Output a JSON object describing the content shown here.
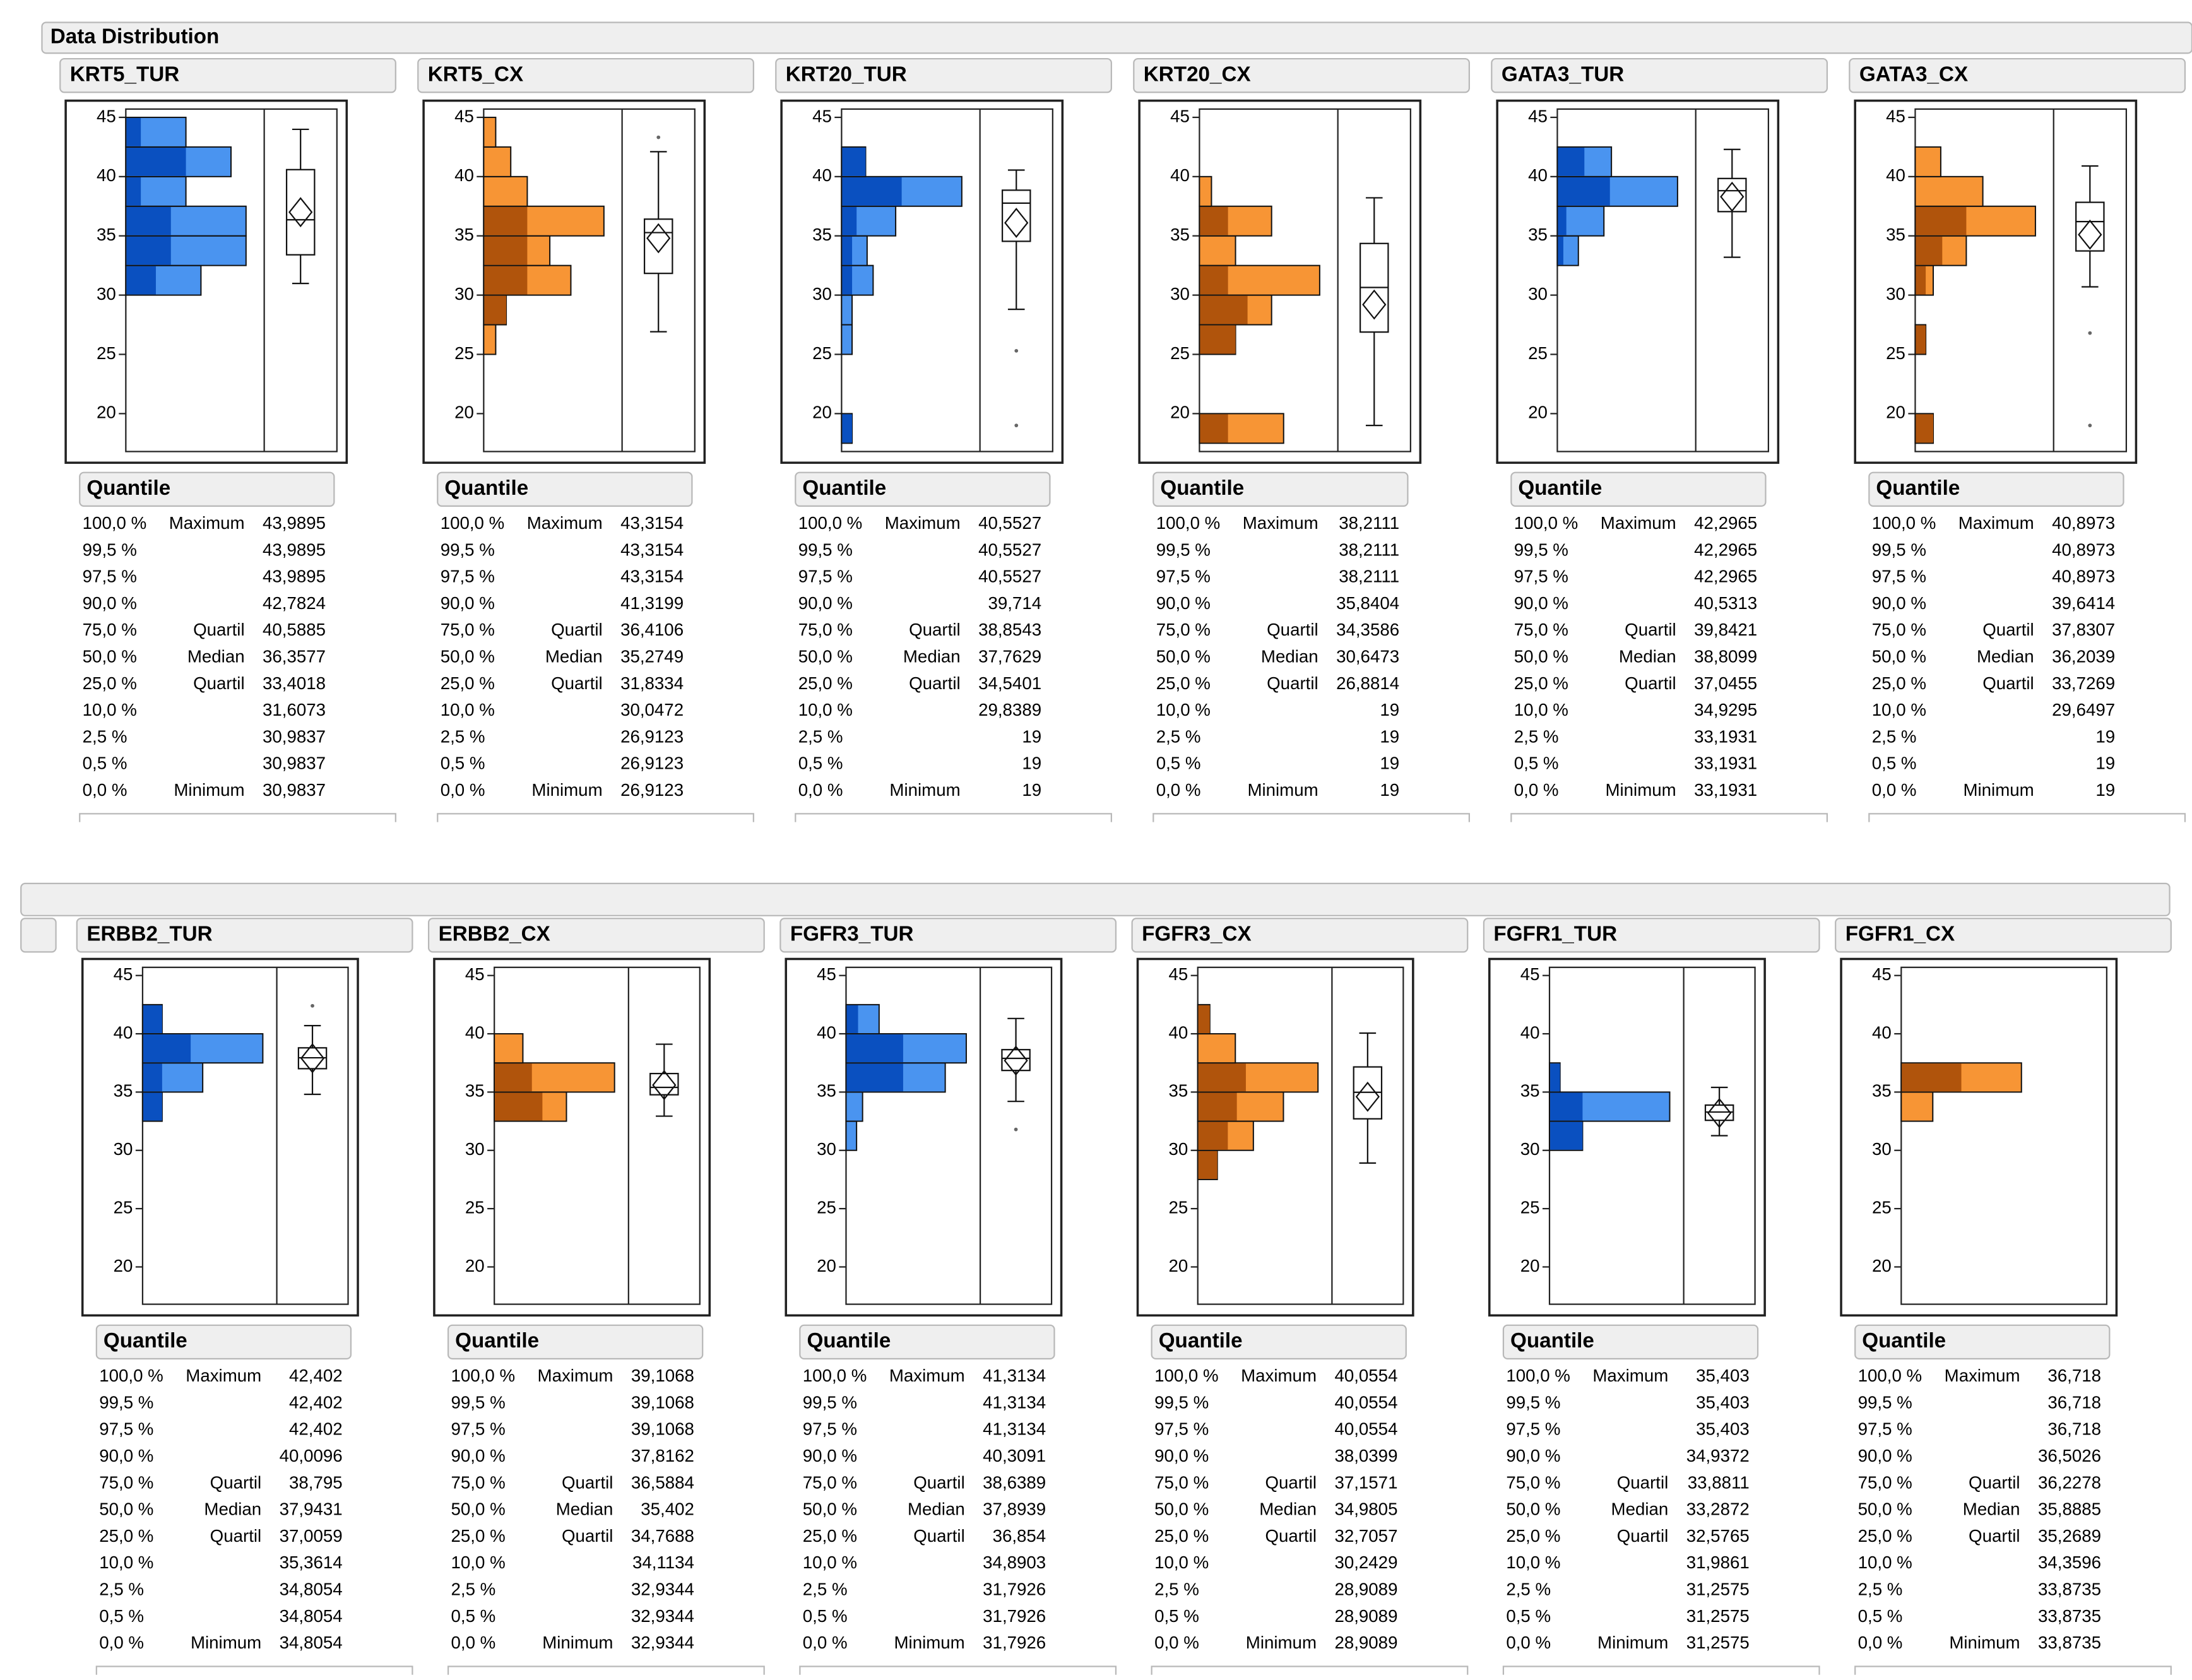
{
  "title": "Data Distribution",
  "quantile_heading": "Quantile",
  "quantile_percents": [
    "100,0 %",
    "99,5 %",
    "97,5 %",
    "90,0 %",
    "75,0 %",
    "50,0 %",
    "25,0 %",
    "10,0 %",
    "2,5 %",
    "0,5 %",
    "0,0 %"
  ],
  "quantile_names": [
    "Maximum",
    null,
    null,
    null,
    "Quartil",
    "Median",
    "Quartil",
    null,
    null,
    null,
    "Minimum"
  ],
  "axis": {
    "ylim": [
      16.8,
      45.7
    ],
    "yticks": [
      20,
      25,
      30,
      35,
      40,
      45
    ]
  },
  "panels": [
    {
      "title": "KRT5_TUR",
      "colors": [
        "#4a94f0",
        "#0a50c0"
      ],
      "hist": {
        "bins": [
          30,
          32.5,
          35,
          37.5,
          40,
          42.5,
          45
        ],
        "counts": [
          5,
          8,
          8,
          4,
          7,
          4
        ],
        "selected": [
          2,
          3,
          3,
          1,
          4,
          1
        ]
      },
      "box": {
        "q1": 33.4018,
        "median": 36.3577,
        "q3": 40.5885,
        "whiskers": [
          30.9837,
          43.9895
        ],
        "mean": 37,
        "outliers": []
      },
      "quantiles": [
        "43,9895",
        "43,9895",
        "43,9895",
        "42,7824",
        "40,5885",
        "36,3577",
        "33,4018",
        "31,6073",
        "30,9837",
        "30,9837",
        "30,9837"
      ]
    },
    {
      "title": "KRT5_CX",
      "colors": [
        "#f79535",
        "#b0540c"
      ],
      "hist": {
        "bins": [
          25,
          27.5,
          30,
          32.5,
          35,
          37.5,
          40,
          42.5,
          45
        ],
        "counts": [
          0.8,
          1.5,
          5.8,
          4.4,
          8,
          2.9,
          1.8,
          0.8
        ],
        "selected": [
          0,
          1.5,
          2.9,
          2.9,
          2.9,
          0,
          0,
          0
        ]
      },
      "box": {
        "q1": 31.8334,
        "median": 35.2749,
        "q3": 36.4106,
        "whiskers": [
          26.9123,
          42.1
        ],
        "mean": 34.8,
        "outliers": [
          43.3154
        ]
      },
      "quantiles": [
        "43,3154",
        "43,3154",
        "43,3154",
        "41,3199",
        "36,4106",
        "35,2749",
        "31,8334",
        "30,0472",
        "26,9123",
        "26,9123",
        "26,9123"
      ]
    },
    {
      "title": "KRT20_TUR",
      "colors": [
        "#4a94f0",
        "#0a50c0"
      ],
      "hist": {
        "bins": [
          17.5,
          20,
          22.5,
          25,
          27.5,
          30,
          32.5,
          35,
          37.5,
          40,
          42.5
        ],
        "counts": [
          0.7,
          0,
          0,
          0.7,
          0.7,
          2.1,
          1.7,
          3.6,
          8,
          1.6
        ],
        "selected": [
          0.7,
          0,
          0,
          0,
          0,
          0.7,
          0.7,
          1,
          4,
          1.6
        ]
      },
      "box": {
        "q1": 34.5401,
        "median": 37.7629,
        "q3": 38.8543,
        "whiskers": [
          28.8,
          40.5527
        ],
        "mean": 36.1,
        "outliers": [
          25.3,
          19
        ]
      },
      "quantiles": [
        "40,5527",
        "40,5527",
        "40,5527",
        "39,714",
        "38,8543",
        "37,7629",
        "34,5401",
        "29,8389",
        "19",
        "19",
        "19"
      ]
    },
    {
      "title": "KRT20_CX",
      "colors": [
        "#f79535",
        "#b0540c"
      ],
      "hist": {
        "bins": [
          17.5,
          20,
          22.5,
          25,
          27.5,
          30,
          32.5,
          35,
          37.5,
          40
        ],
        "counts": [
          5.6,
          0,
          0,
          2.4,
          4.8,
          8,
          2.4,
          4.8,
          0.8
        ],
        "selected": [
          1.9,
          0,
          0,
          2.4,
          3.2,
          1.9,
          0,
          1.9,
          0
        ]
      },
      "box": {
        "q1": 26.8814,
        "median": 30.6473,
        "q3": 34.3586,
        "whiskers": [
          19,
          38.2111
        ],
        "mean": 29.2,
        "outliers": []
      },
      "quantiles": [
        "38,2111",
        "38,2111",
        "38,2111",
        "35,8404",
        "34,3586",
        "30,6473",
        "26,8814",
        "19",
        "19",
        "19",
        "19"
      ]
    },
    {
      "title": "GATA3_TUR",
      "colors": [
        "#4a94f0",
        "#0a50c0"
      ],
      "hist": {
        "bins": [
          32.5,
          35,
          37.5,
          40,
          42.5
        ],
        "counts": [
          1.4,
          3.1,
          8,
          3.6
        ],
        "selected": [
          0.4,
          0.6,
          3.5,
          1.8
        ]
      },
      "box": {
        "q1": 37.0455,
        "median": 38.8099,
        "q3": 39.8421,
        "whiskers": [
          33.1931,
          42.2965
        ],
        "mean": 38.3,
        "outliers": []
      },
      "quantiles": [
        "42,2965",
        "42,2965",
        "42,2965",
        "40,5313",
        "39,8421",
        "38,8099",
        "37,0455",
        "34,9295",
        "33,1931",
        "33,1931",
        "33,1931"
      ]
    },
    {
      "title": "GATA3_CX",
      "colors": [
        "#f79535",
        "#b0540c"
      ],
      "hist": {
        "bins": [
          17.5,
          20,
          22.5,
          25,
          27.5,
          30,
          32.5,
          35,
          37.5,
          40,
          42.5
        ],
        "counts": [
          1.2,
          0,
          0,
          0.7,
          0,
          1.2,
          3.4,
          8,
          4.5,
          1.7
        ],
        "selected": [
          1.2,
          0,
          0,
          0.7,
          0,
          0.7,
          1.8,
          3.4,
          0,
          0
        ]
      },
      "box": {
        "q1": 33.7269,
        "median": 36.2039,
        "q3": 37.8307,
        "whiskers": [
          30.7,
          40.8973
        ],
        "mean": 35.1,
        "outliers": [
          26.8,
          19
        ]
      },
      "quantiles": [
        "40,8973",
        "40,8973",
        "40,8973",
        "39,6414",
        "37,8307",
        "36,2039",
        "33,7269",
        "29,6497",
        "19",
        "19",
        "19"
      ]
    },
    {
      "title": "ERBB2_TUR",
      "colors": [
        "#4a94f0",
        "#0a50c0"
      ],
      "hist": {
        "bins": [
          32.5,
          35,
          37.5,
          40,
          42.5
        ],
        "counts": [
          1.3,
          4,
          8,
          1.3
        ],
        "selected": [
          1.3,
          1.3,
          3.2,
          1.3
        ]
      },
      "box": {
        "q1": 37.0059,
        "median": 37.9431,
        "q3": 38.795,
        "whiskers": [
          34.8054,
          40.7
        ],
        "mean": 37.9,
        "outliers": [
          42.402
        ]
      },
      "quantiles": [
        "42,402",
        "42,402",
        "42,402",
        "40,0096",
        "38,795",
        "37,9431",
        "37,0059",
        "35,3614",
        "34,8054",
        "34,8054",
        "34,8054"
      ]
    },
    {
      "title": "ERBB2_CX",
      "colors": [
        "#f79535",
        "#b0540c"
      ],
      "hist": {
        "bins": [
          32.5,
          35,
          37.5,
          40
        ],
        "counts": [
          4.8,
          8,
          1.9
        ],
        "selected": [
          3.2,
          2.5,
          0
        ]
      },
      "box": {
        "q1": 34.7688,
        "median": 35.402,
        "q3": 36.5884,
        "whiskers": [
          32.9344,
          39.1068
        ],
        "mean": 35.6,
        "outliers": []
      },
      "quantiles": [
        "39,1068",
        "39,1068",
        "39,1068",
        "37,8162",
        "36,5884",
        "35,402",
        "34,7688",
        "34,1134",
        "32,9344",
        "32,9344",
        "32,9344"
      ]
    },
    {
      "title": "FGFR3_TUR",
      "colors": [
        "#4a94f0",
        "#0a50c0"
      ],
      "hist": {
        "bins": [
          30,
          32.5,
          35,
          37.5,
          40,
          42.5
        ],
        "counts": [
          0.7,
          1.1,
          6.6,
          8,
          2.2
        ],
        "selected": [
          0,
          0,
          3.8,
          3.8,
          0.8
        ]
      },
      "box": {
        "q1": 36.854,
        "median": 37.8939,
        "q3": 38.6389,
        "whiskers": [
          34.2,
          41.3134
        ],
        "mean": 37.7,
        "outliers": [
          31.7926
        ]
      },
      "quantiles": [
        "41,3134",
        "41,3134",
        "41,3134",
        "40,3091",
        "38,6389",
        "37,8939",
        "36,854",
        "34,8903",
        "31,7926",
        "31,7926",
        "31,7926"
      ]
    },
    {
      "title": "FGFR3_CX",
      "colors": [
        "#f79535",
        "#b0540c"
      ],
      "hist": {
        "bins": [
          27.5,
          30,
          32.5,
          35,
          37.5,
          40,
          42.5
        ],
        "counts": [
          1.3,
          3.7,
          5.7,
          8,
          2.5,
          0.8
        ],
        "selected": [
          1.3,
          2,
          2.6,
          3.2,
          0,
          0.8
        ]
      },
      "box": {
        "q1": 32.7057,
        "median": 34.9805,
        "q3": 37.1571,
        "whiskers": [
          28.9089,
          40.0554
        ],
        "mean": 34.6,
        "outliers": []
      },
      "quantiles": [
        "40,0554",
        "40,0554",
        "40,0554",
        "38,0399",
        "37,1571",
        "34,9805",
        "32,7057",
        "30,2429",
        "28,9089",
        "28,9089",
        "28,9089"
      ]
    },
    {
      "title": "FGFR1_TUR",
      "colors": [
        "#4a94f0",
        "#0a50c0"
      ],
      "hist": {
        "bins": [
          30,
          32.5,
          35,
          37.5
        ],
        "counts": [
          2.2,
          8,
          0.7
        ],
        "selected": [
          2.2,
          2.2,
          0.7
        ]
      },
      "box": {
        "q1": 32.5765,
        "median": 33.2872,
        "q3": 33.8811,
        "whiskers": [
          31.2575,
          35.403
        ],
        "mean": 33.2,
        "outliers": []
      },
      "quantiles": [
        "35,403",
        "35,403",
        "35,403",
        "34,9372",
        "33,8811",
        "33,2872",
        "32,5765",
        "31,9861",
        "31,2575",
        "31,2575",
        "31,2575"
      ]
    },
    {
      "title": "FGFR1_CX",
      "colors": [
        "#f79535",
        "#b0540c"
      ],
      "hist": {
        "bins": [
          32.5,
          35,
          37.5
        ],
        "counts": [
          2.1,
          8
        ],
        "selected": [
          0,
          4
        ]
      },
      "quantiles": [
        "36,718",
        "36,718",
        "36,718",
        "36,5026",
        "36,2278",
        "35,8885",
        "35,2689",
        "34,3596",
        "33,8735",
        "33,8735",
        "33,8735"
      ]
    }
  ]
}
